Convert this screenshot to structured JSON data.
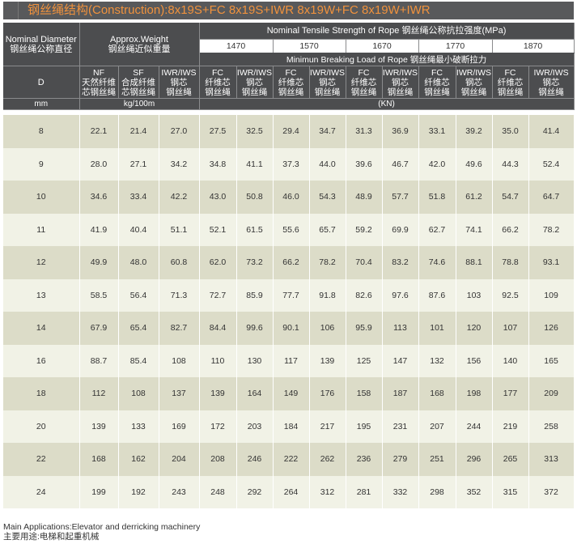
{
  "title": "钢丝绳结构(Construction):8x19S+FC 8x19S+IWR 8x19W+FC 8x19W+IWR",
  "header": {
    "nominal_diameter": "Nominal Diameter",
    "nominal_diameter_cn": "钢丝绳公称直径",
    "approx_weight": "Approx.Weight",
    "approx_weight_cn": "钢丝绳近似重量",
    "tensile_strength": "Nominal Tensile Strength of Rope  钢丝绳公称抗拉强度(MPa)",
    "grades": [
      "1470",
      "1570",
      "1670",
      "1770",
      "1870"
    ],
    "breaking_load": "Minimun Breaking Load of Rope  钢丝绳最小破断拉力",
    "d_label": "D",
    "weight_cols": [
      {
        "code": "NF",
        "cn1": "天然纤维",
        "cn2": "芯钢丝绳"
      },
      {
        "code": "SF",
        "cn1": "合成纤维",
        "cn2": "芯钢丝绳"
      },
      {
        "code": "IWR/IWS",
        "cn1": "钢芯",
        "cn2": "钢丝绳"
      }
    ],
    "load_cols": [
      {
        "code": "FC",
        "cn1": "纤维芯",
        "cn2": "钢丝绳"
      },
      {
        "code": "IWR/IWS",
        "cn1": "钢芯",
        "cn2": "钢丝绳"
      }
    ],
    "unit_mm": "mm",
    "unit_weight": "kg/100m",
    "unit_load": "(KN)"
  },
  "rows": [
    [
      "8",
      "22.1",
      "21.4",
      "27.0",
      "27.5",
      "32.5",
      "29.4",
      "34.7",
      "31.3",
      "36.9",
      "33.1",
      "39.2",
      "35.0",
      "41.4"
    ],
    [
      "9",
      "28.0",
      "27.1",
      "34.2",
      "34.8",
      "41.1",
      "37.3",
      "44.0",
      "39.6",
      "46.7",
      "42.0",
      "49.6",
      "44.3",
      "52.4"
    ],
    [
      "10",
      "34.6",
      "33.4",
      "42.2",
      "43.0",
      "50.8",
      "46.0",
      "54.3",
      "48.9",
      "57.7",
      "51.8",
      "61.2",
      "54.7",
      "64.7"
    ],
    [
      "11",
      "41.9",
      "40.4",
      "51.1",
      "52.1",
      "61.5",
      "55.6",
      "65.7",
      "59.2",
      "69.9",
      "62.7",
      "74.1",
      "66.2",
      "78.2"
    ],
    [
      "12",
      "49.9",
      "48.0",
      "60.8",
      "62.0",
      "73.2",
      "66.2",
      "78.2",
      "70.4",
      "83.2",
      "74.6",
      "88.1",
      "78.8",
      "93.1"
    ],
    [
      "13",
      "58.5",
      "56.4",
      "71.3",
      "72.7",
      "85.9",
      "77.7",
      "91.8",
      "82.6",
      "97.6",
      "87.6",
      "103",
      "92.5",
      "109"
    ],
    [
      "14",
      "67.9",
      "65.4",
      "82.7",
      "84.4",
      "99.6",
      "90.1",
      "106",
      "95.9",
      "113",
      "101",
      "120",
      "107",
      "126"
    ],
    [
      "16",
      "88.7",
      "85.4",
      "108",
      "110",
      "130",
      "117",
      "139",
      "125",
      "147",
      "132",
      "156",
      "140",
      "165"
    ],
    [
      "18",
      "112",
      "108",
      "137",
      "139",
      "164",
      "149",
      "176",
      "158",
      "187",
      "168",
      "198",
      "177",
      "209"
    ],
    [
      "20",
      "139",
      "133",
      "169",
      "172",
      "203",
      "184",
      "217",
      "195",
      "231",
      "207",
      "244",
      "219",
      "258"
    ],
    [
      "22",
      "168",
      "162",
      "204",
      "208",
      "246",
      "222",
      "262",
      "236",
      "279",
      "251",
      "296",
      "265",
      "313"
    ],
    [
      "24",
      "199",
      "192",
      "243",
      "248",
      "292",
      "264",
      "312",
      "281",
      "332",
      "298",
      "352",
      "315",
      "372"
    ]
  ],
  "footer": {
    "applications": "Main Applications:Elevator and derricking machinery",
    "applications_cn": "主要用途:电梯和起重机械"
  }
}
